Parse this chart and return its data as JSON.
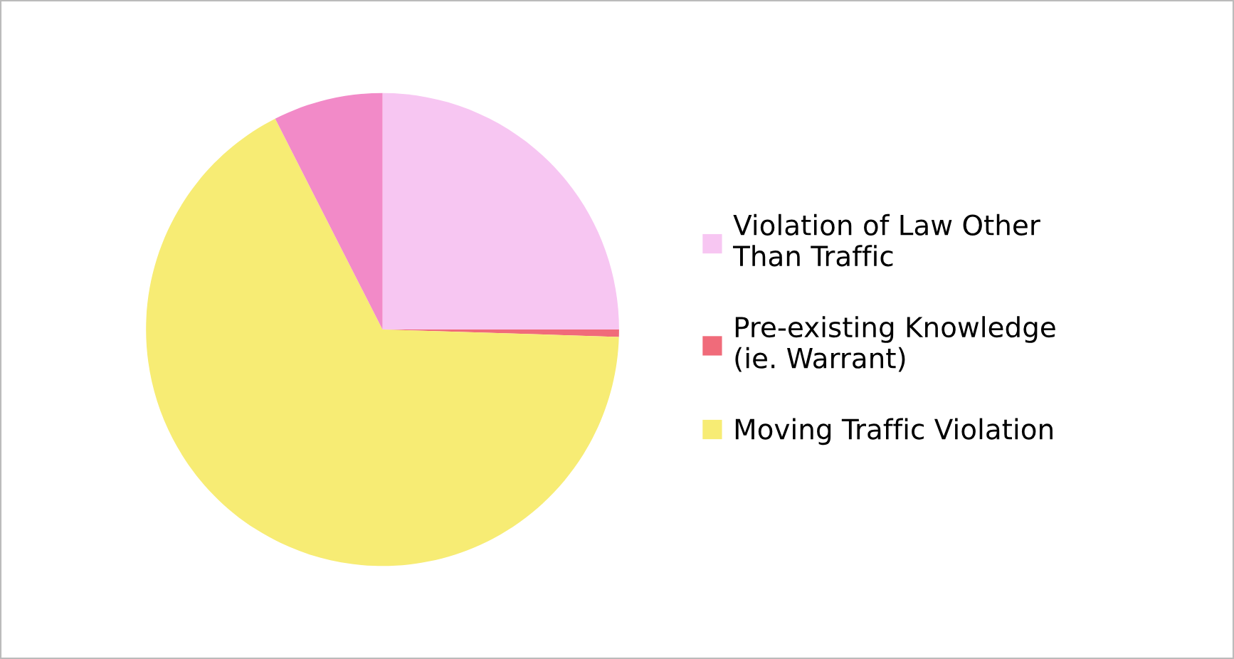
{
  "chart_data": {
    "type": "pie",
    "categories": [
      "Violation of Law Other Than Traffic",
      "Pre-existing Knowledge (ie. Warrant)",
      "Moving Traffic Violation",
      null
    ],
    "values": [
      25,
      0.5,
      67,
      7.5
    ],
    "colors": [
      "#f7c6f2",
      "#f06b7a",
      "#f7ec74",
      "#f28ac8"
    ],
    "legend": "right"
  }
}
